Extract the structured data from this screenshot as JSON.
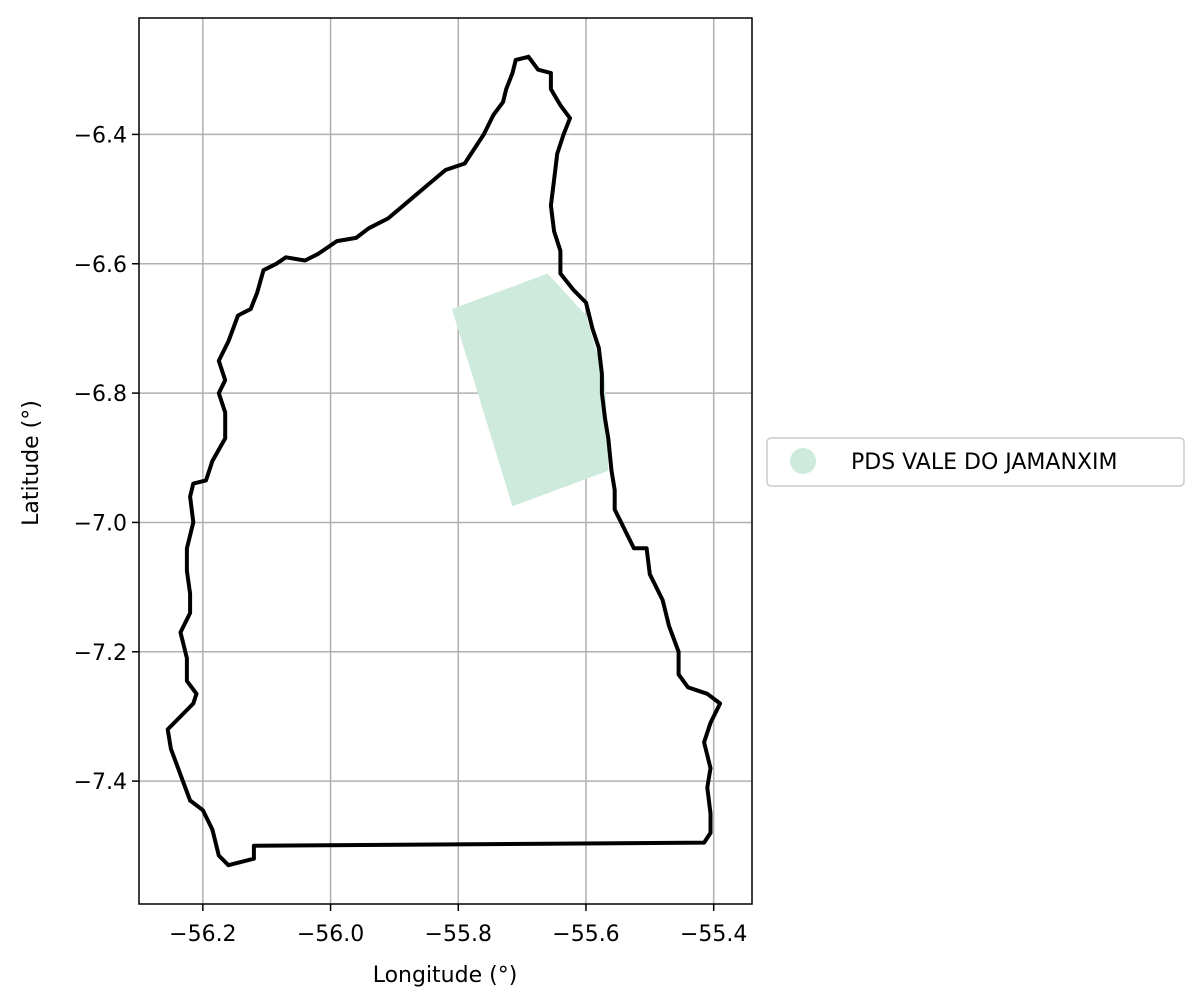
{
  "chart_data": {
    "type": "map",
    "xlabel": "Longitude (°)",
    "ylabel": "Latitude (°)",
    "xlim": [
      -56.3,
      -55.34
    ],
    "ylim": [
      -7.59,
      -6.22
    ],
    "grid": true,
    "x_ticks": [
      -56.2,
      -56.0,
      -55.8,
      -55.6,
      -55.4
    ],
    "x_tick_labels": [
      "−56.2",
      "−56.0",
      "−55.8",
      "−55.6",
      "−55.4"
    ],
    "y_ticks": [
      -6.4,
      -6.6,
      -6.8,
      -7.0,
      -7.2,
      -7.4
    ],
    "y_tick_labels": [
      "−6.4",
      "−6.6",
      "−6.8",
      "−7.0",
      "−7.2",
      "−7.4"
    ],
    "legend": {
      "placement": "right",
      "entries": [
        {
          "label": "PDS VALE DO JAMANXIM",
          "color": "#cdeadc"
        }
      ]
    },
    "polygon_fill": {
      "name": "PDS VALE DO JAMANXIM",
      "color": "#cdeadc",
      "coords": [
        [
          -55.81,
          -6.67
        ],
        [
          -55.66,
          -6.615
        ],
        [
          -55.6,
          -6.68
        ],
        [
          -55.57,
          -6.78
        ],
        [
          -55.565,
          -6.92
        ],
        [
          -55.715,
          -6.975
        ]
      ]
    },
    "boundary": {
      "color": "#000000",
      "coords": [
        [
          -55.69,
          -6.28
        ],
        [
          -55.675,
          -6.3
        ],
        [
          -55.655,
          -6.305
        ],
        [
          -55.655,
          -6.33
        ],
        [
          -55.64,
          -6.355
        ],
        [
          -55.625,
          -6.375
        ],
        [
          -55.635,
          -6.4
        ],
        [
          -55.645,
          -6.43
        ],
        [
          -55.65,
          -6.47
        ],
        [
          -55.655,
          -6.51
        ],
        [
          -55.65,
          -6.55
        ],
        [
          -55.64,
          -6.58
        ],
        [
          -55.64,
          -6.615
        ],
        [
          -55.62,
          -6.64
        ],
        [
          -55.6,
          -6.66
        ],
        [
          -55.59,
          -6.7
        ],
        [
          -55.58,
          -6.73
        ],
        [
          -55.575,
          -6.77
        ],
        [
          -55.575,
          -6.8
        ],
        [
          -55.57,
          -6.84
        ],
        [
          -55.565,
          -6.87
        ],
        [
          -55.56,
          -6.92
        ],
        [
          -55.555,
          -6.95
        ],
        [
          -55.555,
          -6.98
        ],
        [
          -55.545,
          -7.0
        ],
        [
          -55.525,
          -7.04
        ],
        [
          -55.505,
          -7.04
        ],
        [
          -55.5,
          -7.08
        ],
        [
          -55.48,
          -7.12
        ],
        [
          -55.47,
          -7.16
        ],
        [
          -55.455,
          -7.2
        ],
        [
          -55.455,
          -7.235
        ],
        [
          -55.44,
          -7.255
        ],
        [
          -55.41,
          -7.265
        ],
        [
          -55.39,
          -7.28
        ],
        [
          -55.405,
          -7.31
        ],
        [
          -55.415,
          -7.34
        ],
        [
          -55.405,
          -7.38
        ],
        [
          -55.41,
          -7.41
        ],
        [
          -55.405,
          -7.45
        ],
        [
          -55.405,
          -7.48
        ],
        [
          -55.415,
          -7.495
        ],
        [
          -56.12,
          -7.5
        ],
        [
          -56.12,
          -7.52
        ],
        [
          -56.16,
          -7.53
        ],
        [
          -56.175,
          -7.515
        ],
        [
          -56.185,
          -7.475
        ],
        [
          -56.2,
          -7.445
        ],
        [
          -56.22,
          -7.43
        ],
        [
          -56.235,
          -7.39
        ],
        [
          -56.25,
          -7.35
        ],
        [
          -56.255,
          -7.32
        ],
        [
          -56.235,
          -7.3
        ],
        [
          -56.215,
          -7.28
        ],
        [
          -56.21,
          -7.265
        ],
        [
          -56.225,
          -7.245
        ],
        [
          -56.225,
          -7.21
        ],
        [
          -56.235,
          -7.17
        ],
        [
          -56.22,
          -7.14
        ],
        [
          -56.22,
          -7.11
        ],
        [
          -56.225,
          -7.075
        ],
        [
          -56.225,
          -7.04
        ],
        [
          -56.215,
          -7.0
        ],
        [
          -56.22,
          -6.96
        ],
        [
          -56.215,
          -6.94
        ],
        [
          -56.195,
          -6.935
        ],
        [
          -56.185,
          -6.905
        ],
        [
          -56.165,
          -6.87
        ],
        [
          -56.165,
          -6.83
        ],
        [
          -56.175,
          -6.8
        ],
        [
          -56.165,
          -6.78
        ],
        [
          -56.175,
          -6.75
        ],
        [
          -56.16,
          -6.72
        ],
        [
          -56.145,
          -6.68
        ],
        [
          -56.125,
          -6.67
        ],
        [
          -56.115,
          -6.645
        ],
        [
          -56.105,
          -6.61
        ],
        [
          -56.085,
          -6.6
        ],
        [
          -56.07,
          -6.59
        ],
        [
          -56.04,
          -6.595
        ],
        [
          -56.02,
          -6.585
        ],
        [
          -55.99,
          -6.565
        ],
        [
          -55.96,
          -6.56
        ],
        [
          -55.94,
          -6.545
        ],
        [
          -55.91,
          -6.53
        ],
        [
          -55.88,
          -6.505
        ],
        [
          -55.85,
          -6.48
        ],
        [
          -55.82,
          -6.455
        ],
        [
          -55.79,
          -6.445
        ],
        [
          -55.76,
          -6.4
        ],
        [
          -55.745,
          -6.37
        ],
        [
          -55.73,
          -6.35
        ],
        [
          -55.725,
          -6.33
        ],
        [
          -55.715,
          -6.305
        ],
        [
          -55.71,
          -6.285
        ],
        [
          -55.69,
          -6.28
        ]
      ]
    }
  }
}
